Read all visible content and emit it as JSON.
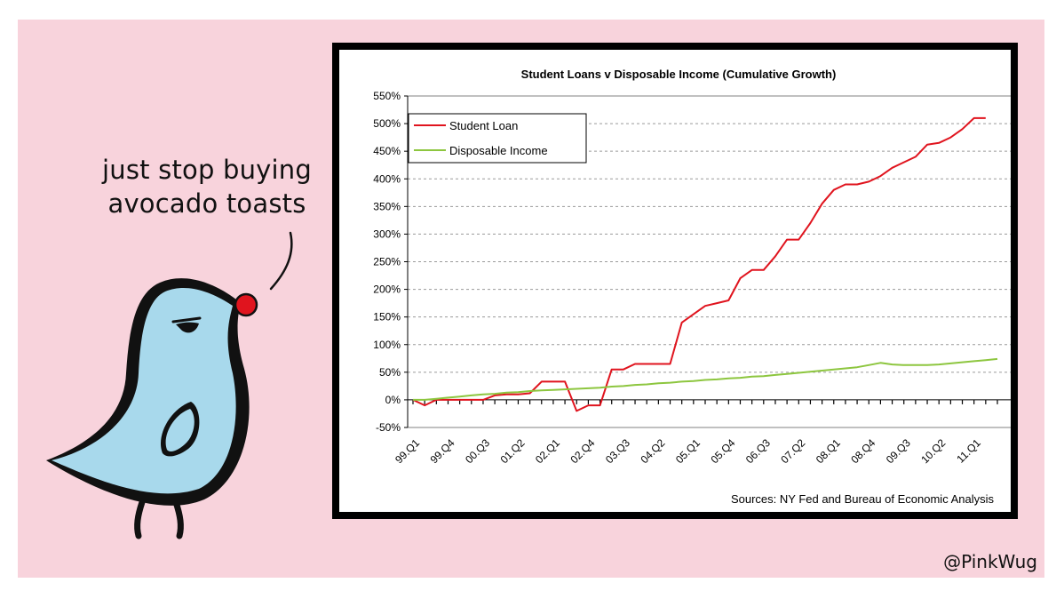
{
  "caption": {
    "line1": "just stop buying",
    "line2": "avocado toasts"
  },
  "credit": "@PinkWug",
  "chart_data": {
    "type": "line",
    "title": "Student Loans v Disposable Income (Cumulative Growth)",
    "source": "Sources: NY Fed and Bureau of Economic Analysis",
    "ylim": [
      -50,
      550
    ],
    "y_ticks": [
      -50,
      0,
      50,
      100,
      150,
      200,
      250,
      300,
      350,
      400,
      450,
      500,
      550
    ],
    "y_tick_labels": [
      "-50%",
      "0%",
      "50%",
      "100%",
      "150%",
      "200%",
      "250%",
      "300%",
      "350%",
      "400%",
      "450%",
      "500%",
      "550%"
    ],
    "x_tick_labels": [
      "99.Q1",
      "99.Q4",
      "00.Q3",
      "01.Q2",
      "02.Q1",
      "02.Q4",
      "03.Q3",
      "04.Q2",
      "05.Q1",
      "05.Q4",
      "06.Q3",
      "07.Q2",
      "08.Q1",
      "08.Q4",
      "09.Q3",
      "10.Q2",
      "11.Q1"
    ],
    "grid": true,
    "legend_position": "top-left",
    "series": [
      {
        "name": "Student Loan",
        "color": "#e0141e",
        "values": [
          0,
          -10,
          0,
          0,
          0,
          0,
          0,
          8,
          10,
          10,
          12,
          33,
          33,
          33,
          -20,
          -10,
          -10,
          55,
          55,
          65,
          65,
          65,
          65,
          140,
          155,
          170,
          175,
          180,
          220,
          235,
          235,
          260,
          290,
          290,
          320,
          355,
          380,
          390,
          390,
          395,
          405,
          420,
          430,
          440,
          462,
          465,
          475,
          490,
          510,
          510
        ]
      },
      {
        "name": "Disposable Income",
        "color": "#8dc63f",
        "values": [
          0,
          0,
          2,
          4,
          6,
          8,
          10,
          11,
          13,
          14,
          16,
          17,
          18,
          19,
          20,
          21,
          22,
          24,
          25,
          27,
          28,
          30,
          31,
          33,
          34,
          36,
          37,
          39,
          40,
          42,
          43,
          45,
          47,
          49,
          51,
          53,
          55,
          57,
          59,
          63,
          67,
          64,
          63,
          63,
          63,
          64,
          66,
          68,
          70,
          72,
          74
        ]
      }
    ]
  }
}
